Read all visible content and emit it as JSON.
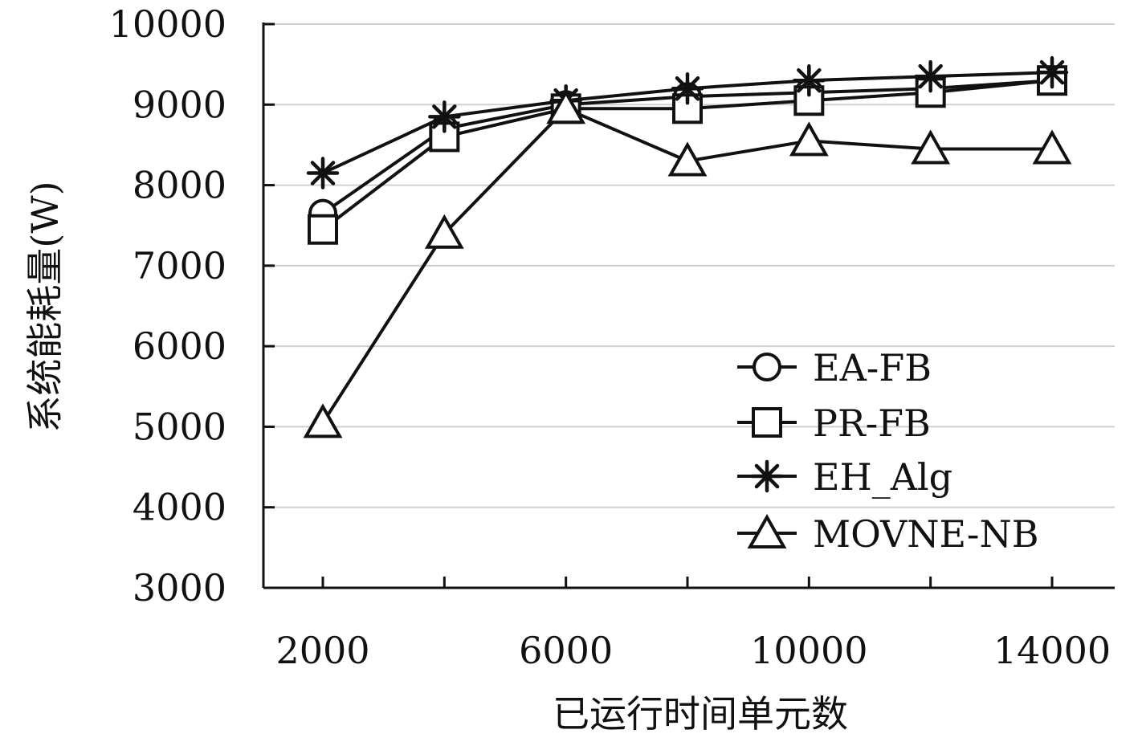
{
  "chart_data": {
    "type": "line",
    "xlabel": "已运行时间单元数",
    "ylabel": "系统能耗量(W)",
    "x": [
      2000,
      4000,
      6000,
      8000,
      10000,
      12000,
      14000
    ],
    "x_tick_labels": [
      "2000",
      "6000",
      "10000",
      "14000"
    ],
    "x_ticks": [
      2000,
      6000,
      10000,
      14000
    ],
    "xlim": [
      1000,
      15000
    ],
    "y_tick_labels": [
      "3000",
      "4000",
      "5000",
      "6000",
      "7000",
      "8000",
      "9000",
      "10000"
    ],
    "y_ticks": [
      3000,
      4000,
      5000,
      6000,
      7000,
      8000,
      9000,
      10000
    ],
    "ylim": [
      3000,
      10000
    ],
    "grid": "horizontal",
    "legend_position": "lower-right",
    "series": [
      {
        "name": "EA-FB",
        "marker": "circle",
        "values": [
          7650,
          8700,
          9000,
          9100,
          9150,
          9200,
          9300
        ]
      },
      {
        "name": "PR-FB",
        "marker": "square",
        "values": [
          7450,
          8600,
          8950,
          8950,
          9050,
          9150,
          9300
        ]
      },
      {
        "name": "EH_Alg",
        "marker": "star",
        "values": [
          8150,
          8850,
          9050,
          9200,
          9300,
          9350,
          9400
        ]
      },
      {
        "name": "MOVNE-NB",
        "marker": "triangle",
        "values": [
          5050,
          7400,
          8950,
          8300,
          8550,
          8450,
          8450
        ]
      }
    ]
  }
}
